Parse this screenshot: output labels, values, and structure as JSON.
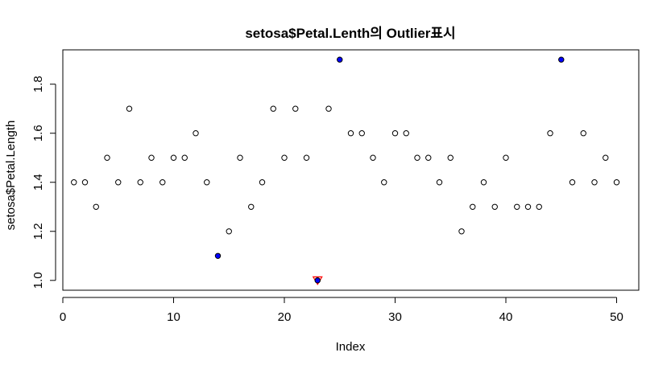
{
  "chart_data": {
    "type": "scatter",
    "title": "setosa$Petal.Lenth의 Outlier표시",
    "xlabel": "Index",
    "ylabel": "setosa$Petal.Length",
    "xlim": [
      0,
      52
    ],
    "ylim": [
      0.96,
      1.94
    ],
    "xticks": [
      0,
      10,
      20,
      30,
      40,
      50
    ],
    "yticks": [
      1.0,
      1.2,
      1.4,
      1.6,
      1.8
    ],
    "grid": false,
    "x": [
      1,
      2,
      3,
      4,
      5,
      6,
      7,
      8,
      9,
      10,
      11,
      12,
      13,
      14,
      15,
      16,
      17,
      18,
      19,
      20,
      21,
      22,
      23,
      24,
      25,
      26,
      27,
      28,
      29,
      30,
      31,
      32,
      33,
      34,
      35,
      36,
      37,
      38,
      39,
      40,
      41,
      42,
      43,
      44,
      45,
      46,
      47,
      48,
      49,
      50
    ],
    "y": [
      1.4,
      1.4,
      1.3,
      1.5,
      1.4,
      1.7,
      1.4,
      1.5,
      1.4,
      1.5,
      1.5,
      1.6,
      1.4,
      1.1,
      1.2,
      1.5,
      1.3,
      1.4,
      1.7,
      1.5,
      1.7,
      1.5,
      1.0,
      1.7,
      1.9,
      1.6,
      1.6,
      1.5,
      1.4,
      1.6,
      1.6,
      1.5,
      1.5,
      1.4,
      1.5,
      1.2,
      1.3,
      1.4,
      1.3,
      1.5,
      1.3,
      1.3,
      1.3,
      1.6,
      1.9,
      1.4,
      1.6,
      1.4,
      1.5,
      1.4
    ],
    "outliers": {
      "blue_points": [
        14,
        25,
        45
      ],
      "red_triangle": [
        23
      ]
    },
    "colors": {
      "point": "#000000",
      "outlier_fill": "#0000ff",
      "triangle": "#ff0000"
    }
  }
}
